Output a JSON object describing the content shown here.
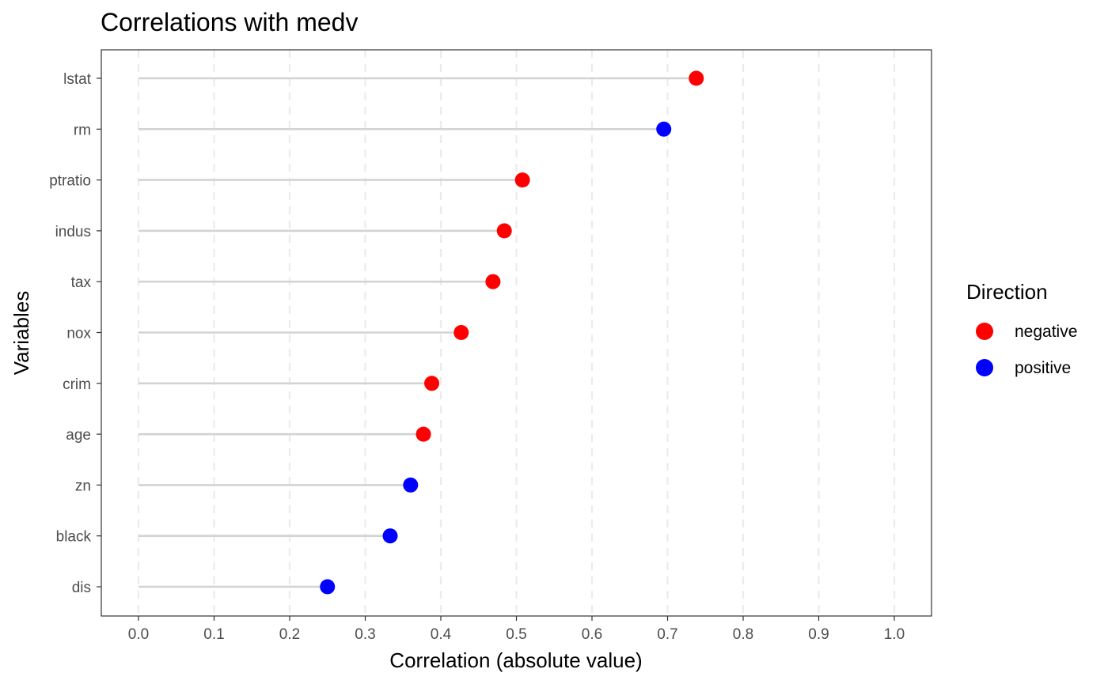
{
  "chart_data": {
    "type": "scatter",
    "title": "Correlations with medv",
    "xlabel": "Correlation (absolute value)",
    "ylabel": "Variables",
    "xlim": [
      0,
      1
    ],
    "xticks": [
      "0.0",
      "0.1",
      "0.2",
      "0.3",
      "0.4",
      "0.5",
      "0.6",
      "0.7",
      "0.8",
      "0.9",
      "1.0"
    ],
    "grid": "vertical dashed",
    "legend": {
      "title": "Direction",
      "placement": "right",
      "entries": [
        {
          "label": "negative",
          "color": "#ff0000"
        },
        {
          "label": "positive",
          "color": "#0000ff"
        }
      ]
    },
    "points": [
      {
        "variable": "lstat",
        "value": 0.738,
        "direction": "negative"
      },
      {
        "variable": "rm",
        "value": 0.695,
        "direction": "positive"
      },
      {
        "variable": "ptratio",
        "value": 0.508,
        "direction": "negative"
      },
      {
        "variable": "indus",
        "value": 0.484,
        "direction": "negative"
      },
      {
        "variable": "tax",
        "value": 0.469,
        "direction": "negative"
      },
      {
        "variable": "nox",
        "value": 0.427,
        "direction": "negative"
      },
      {
        "variable": "crim",
        "value": 0.388,
        "direction": "negative"
      },
      {
        "variable": "age",
        "value": 0.377,
        "direction": "negative"
      },
      {
        "variable": "zn",
        "value": 0.36,
        "direction": "positive"
      },
      {
        "variable": "black",
        "value": 0.333,
        "direction": "positive"
      },
      {
        "variable": "dis",
        "value": 0.25,
        "direction": "positive"
      }
    ]
  }
}
